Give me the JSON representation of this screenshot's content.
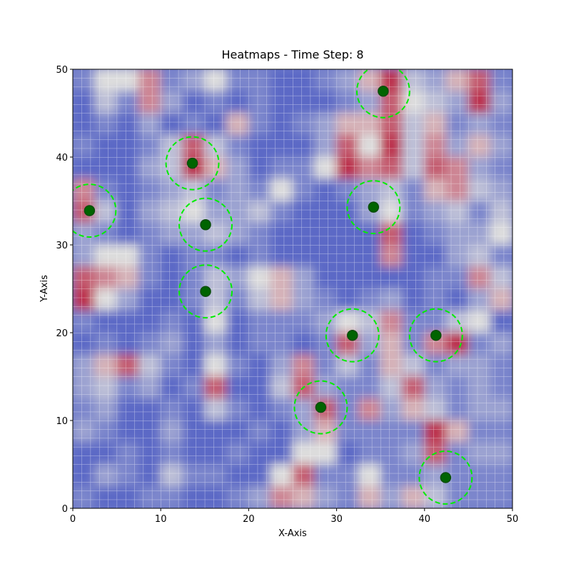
{
  "chart_data": {
    "type": "heatmap",
    "title": "Heatmaps - Time Step: 8",
    "xlabel": "X-Axis",
    "ylabel": "Y-Axis",
    "xlim": [
      0,
      50
    ],
    "ylim": [
      0,
      50
    ],
    "xticks": [
      0,
      10,
      20,
      30,
      40,
      50
    ],
    "yticks": [
      0,
      10,
      20,
      30,
      40,
      50
    ],
    "colormap": [
      "#3b4cc0",
      "#dddddd",
      "#b40426"
    ],
    "heatmap": {
      "values": [
        [
          0.2,
          0.5,
          0.5,
          0.7,
          0.2,
          0.3,
          0.5,
          0.2,
          0.2,
          0.1,
          0.1,
          0.2,
          0.3,
          0.6,
          0.9,
          0.4,
          0.3,
          0.6,
          0.8,
          0.2
        ],
        [
          0.1,
          0.4,
          0.2,
          0.7,
          0.3,
          0.1,
          0.2,
          0.1,
          0.2,
          0.1,
          0.1,
          0.1,
          0.2,
          0.3,
          0.8,
          0.5,
          0.4,
          0.3,
          0.9,
          0.3
        ],
        [
          0.1,
          0.2,
          0.1,
          0.3,
          0.1,
          0.2,
          0.1,
          0.6,
          0.2,
          0.1,
          0.2,
          0.3,
          0.6,
          0.6,
          0.8,
          0.4,
          0.6,
          0.2,
          0.3,
          0.2
        ],
        [
          0.2,
          0.1,
          0.1,
          0.2,
          0.4,
          0.8,
          0.4,
          0.2,
          0.1,
          0.1,
          0.1,
          0.3,
          0.8,
          0.5,
          0.9,
          0.4,
          0.7,
          0.3,
          0.6,
          0.3
        ],
        [
          0.1,
          0.1,
          0.1,
          0.3,
          0.4,
          0.9,
          0.6,
          0.3,
          0.1,
          0.2,
          0.2,
          0.5,
          0.9,
          0.7,
          0.8,
          0.4,
          0.8,
          0.7,
          0.3,
          0.2
        ],
        [
          0.7,
          0.2,
          0.1,
          0.2,
          0.3,
          0.4,
          0.2,
          0.3,
          0.2,
          0.5,
          0.2,
          0.1,
          0.2,
          0.3,
          0.4,
          0.2,
          0.6,
          0.7,
          0.4,
          0.3
        ],
        [
          0.8,
          0.4,
          0.1,
          0.3,
          0.4,
          0.5,
          0.3,
          0.3,
          0.4,
          0.2,
          0.1,
          0.1,
          0.1,
          0.3,
          0.5,
          0.2,
          0.3,
          0.4,
          0.2,
          0.4
        ],
        [
          0.3,
          0.2,
          0.1,
          0.2,
          0.3,
          0.3,
          0.4,
          0.3,
          0.2,
          0.1,
          0.1,
          0.1,
          0.1,
          0.1,
          0.8,
          0.1,
          0.2,
          0.3,
          0.3,
          0.5
        ],
        [
          0.3,
          0.5,
          0.5,
          0.2,
          0.1,
          0.2,
          0.2,
          0.1,
          0.2,
          0.1,
          0.1,
          0.1,
          0.1,
          0.1,
          0.7,
          0.1,
          0.1,
          0.3,
          0.4,
          0.2
        ],
        [
          0.8,
          0.7,
          0.6,
          0.2,
          0.1,
          0.2,
          0.4,
          0.3,
          0.5,
          0.6,
          0.3,
          0.1,
          0.1,
          0.1,
          0.1,
          0.1,
          0.2,
          0.2,
          0.7,
          0.4
        ],
        [
          0.9,
          0.5,
          0.3,
          0.1,
          0.1,
          0.2,
          0.4,
          0.2,
          0.4,
          0.6,
          0.3,
          0.2,
          0.1,
          0.2,
          0.3,
          0.1,
          0.2,
          0.1,
          0.3,
          0.6
        ],
        [
          0.2,
          0.1,
          0.1,
          0.1,
          0.2,
          0.1,
          0.5,
          0.1,
          0.2,
          0.2,
          0.2,
          0.3,
          0.5,
          0.4,
          0.7,
          0.2,
          0.2,
          0.4,
          0.5,
          0.1
        ],
        [
          0.1,
          0.2,
          0.1,
          0.2,
          0.3,
          0.1,
          0.3,
          0.1,
          0.2,
          0.2,
          0.1,
          0.2,
          0.8,
          0.3,
          0.6,
          0.2,
          0.7,
          0.9,
          0.2,
          0.3
        ],
        [
          0.3,
          0.6,
          0.8,
          0.4,
          0.2,
          0.1,
          0.5,
          0.2,
          0.1,
          0.3,
          0.7,
          0.2,
          0.4,
          0.2,
          0.6,
          0.4,
          0.2,
          0.3,
          0.3,
          0.2
        ],
        [
          0.3,
          0.4,
          0.2,
          0.3,
          0.1,
          0.2,
          0.8,
          0.1,
          0.1,
          0.4,
          0.8,
          0.3,
          0.2,
          0.2,
          0.4,
          0.8,
          0.3,
          0.2,
          0.3,
          0.2
        ],
        [
          0.2,
          0.3,
          0.1,
          0.1,
          0.2,
          0.1,
          0.4,
          0.2,
          0.1,
          0.2,
          0.3,
          0.8,
          0.2,
          0.7,
          0.3,
          0.6,
          0.4,
          0.2,
          0.3,
          0.3
        ],
        [
          0.3,
          0.2,
          0.1,
          0.1,
          0.3,
          0.1,
          0.1,
          0.1,
          0.2,
          0.1,
          0.3,
          0.6,
          0.2,
          0.2,
          0.2,
          0.2,
          0.9,
          0.6,
          0.2,
          0.2
        ],
        [
          0.1,
          0.1,
          0.2,
          0.1,
          0.2,
          0.1,
          0.1,
          0.2,
          0.1,
          0.1,
          0.5,
          0.5,
          0.1,
          0.2,
          0.2,
          0.3,
          0.8,
          0.2,
          0.3,
          0.3
        ],
        [
          0.1,
          0.3,
          0.2,
          0.1,
          0.4,
          0.2,
          0.2,
          0.1,
          0.1,
          0.5,
          0.8,
          0.2,
          0.2,
          0.5,
          0.2,
          0.2,
          0.3,
          0.2,
          0.2,
          0.2
        ],
        [
          0.2,
          0.1,
          0.1,
          0.2,
          0.2,
          0.1,
          0.1,
          0.2,
          0.3,
          0.7,
          0.6,
          0.3,
          0.2,
          0.6,
          0.3,
          0.6,
          0.4,
          0.2,
          0.2,
          0.2
        ]
      ]
    },
    "points": {
      "x": [
        35.3,
        13.6,
        1.9,
        15.1,
        34.2,
        15.1,
        31.8,
        41.3,
        28.2,
        42.4
      ],
      "y": [
        47.5,
        39.3,
        33.9,
        32.3,
        34.3,
        24.7,
        19.7,
        19.7,
        11.5,
        3.5
      ],
      "color": "#006400"
    },
    "circle_radius": 3,
    "circle_color": "#00ee00"
  }
}
